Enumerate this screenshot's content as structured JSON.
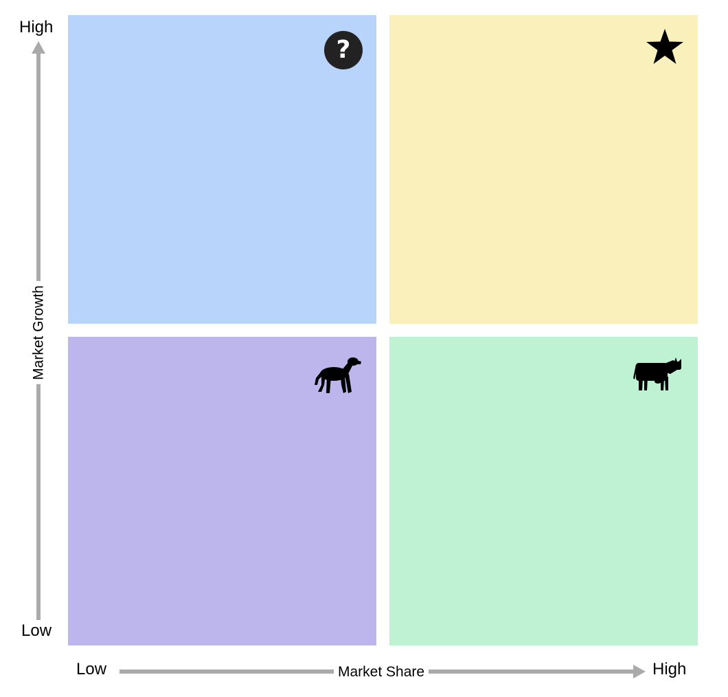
{
  "axes": {
    "x_title": "Market Share",
    "y_title": "Market Growth",
    "x_low": "Low",
    "x_high": "High",
    "y_low": "Low",
    "y_high": "High"
  },
  "quadrants": [
    {
      "position": "top-left",
      "color": "#b8d4fa",
      "icon": "question-mark-icon",
      "glyph": "?"
    },
    {
      "position": "top-right",
      "color": "#faf0bc",
      "icon": "star-icon"
    },
    {
      "position": "bottom-left",
      "color": "#bdb6ec",
      "icon": "dog-icon"
    },
    {
      "position": "bottom-right",
      "color": "#bef2d3",
      "icon": "cow-icon"
    }
  ],
  "colors": {
    "axis_arrow": "#aaaaaa",
    "icon": "#000000"
  }
}
